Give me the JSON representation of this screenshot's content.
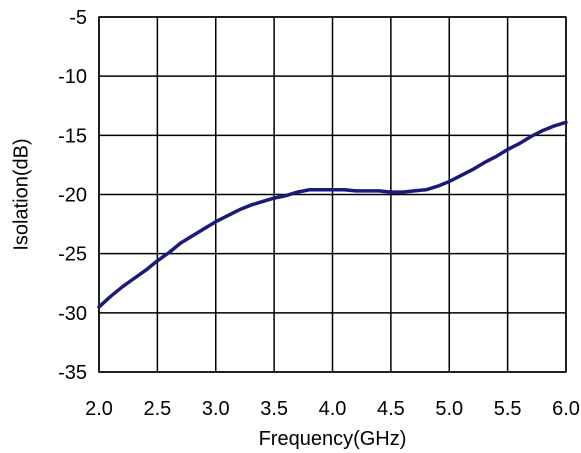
{
  "chart_data": {
    "type": "line",
    "title": "",
    "xlabel": "Frequency(GHz)",
    "ylabel": "Isolation(dB)",
    "xlim": [
      2.0,
      6.0
    ],
    "ylim": [
      -35,
      -5
    ],
    "x_ticks": [
      "2.0",
      "2.5",
      "3.0",
      "3.5",
      "4.0",
      "4.5",
      "5.0",
      "5.5",
      "6.0"
    ],
    "y_ticks": [
      "-5",
      "-10",
      "-15",
      "-20",
      "-25",
      "-30",
      "-35"
    ],
    "grid": true,
    "line_color": "#1a1a7a",
    "series": [
      {
        "name": "",
        "x": [
          2.0,
          2.1,
          2.2,
          2.3,
          2.4,
          2.5,
          2.6,
          2.7,
          2.8,
          2.9,
          3.0,
          3.1,
          3.2,
          3.3,
          3.4,
          3.5,
          3.6,
          3.7,
          3.8,
          3.9,
          4.0,
          4.1,
          4.2,
          4.3,
          4.4,
          4.5,
          4.6,
          4.7,
          4.8,
          4.9,
          5.0,
          5.1,
          5.2,
          5.3,
          5.4,
          5.5,
          5.6,
          5.7,
          5.8,
          5.9,
          6.0
        ],
        "y": [
          -29.5,
          -28.6,
          -27.8,
          -27.1,
          -26.4,
          -25.6,
          -24.9,
          -24.1,
          -23.5,
          -22.9,
          -22.3,
          -21.8,
          -21.3,
          -20.9,
          -20.6,
          -20.3,
          -20.1,
          -19.8,
          -19.6,
          -19.6,
          -19.6,
          -19.6,
          -19.7,
          -19.7,
          -19.7,
          -19.8,
          -19.8,
          -19.7,
          -19.6,
          -19.3,
          -18.9,
          -18.4,
          -17.9,
          -17.3,
          -16.8,
          -16.2,
          -15.7,
          -15.1,
          -14.6,
          -14.2,
          -13.9
        ]
      }
    ]
  }
}
